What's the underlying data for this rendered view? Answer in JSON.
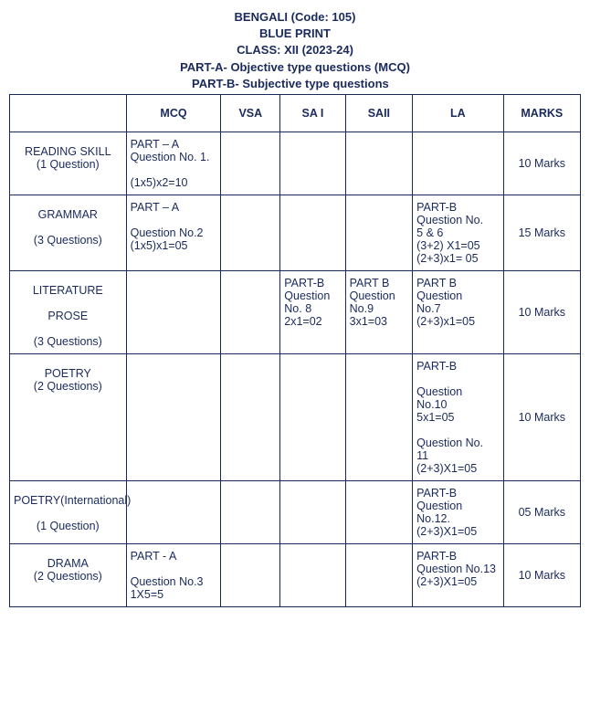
{
  "header": {
    "title": "BENGALI (Code: 105)",
    "blueprint": "BLUE  PRINT",
    "class": "CLASS: XII (2023-24)",
    "parta": "PART-A-  Objective type questions (MCQ)",
    "partb": "PART-B-  Subjective type questions"
  },
  "columns": {
    "blank": "",
    "mcq": "MCQ",
    "vsa": "VSA",
    "sai": "SA I",
    "saii": "SAII",
    "la": "LA",
    "marks": "MARKS"
  },
  "rows": [
    {
      "label": "READING SKILL\n(1 Question)",
      "mcq": "PART – A\nQuestion No. 1.\n\n(1x5)x2=10",
      "vsa": "",
      "sai": "",
      "saii": "",
      "la": "",
      "marks": "10 Marks"
    },
    {
      "label": "GRAMMAR\n\n(3 Questions)",
      "mcq": "PART – A\n\nQuestion No.2\n(1x5)x1=05",
      "vsa": "",
      "sai": "",
      "saii": "",
      "la": "PART-B\nQuestion No.\n  5 & 6\n(3+2) X1=05\n(2+3)x1= 05",
      "marks": "15 Marks"
    },
    {
      "label": "LITERATURE\n\nPROSE\n\n(3 Questions)",
      "mcq": "",
      "vsa": "",
      "sai": "PART-B\nQuestion\nNo. 8\n2x1=02",
      "saii": "PART B\nQuestion\nNo.9\n3x1=03",
      "la": "PART B\nQuestion\nNo.7\n(2+3)x1=05",
      "marks": "10 Marks"
    },
    {
      "label": "POETRY\n(2 Questions)",
      "mcq": "",
      "vsa": "",
      "sai": "",
      "saii": "",
      "la": "  PART-B\n\nQuestion\nNo.10\n5x1=05\n\nQuestion No.\n11\n(2+3)X1=05",
      "marks": "10  Marks"
    },
    {
      "label": "POETRY(International)\n\n(1 Question)",
      "mcq": "",
      "vsa": "",
      "sai": "",
      "saii": "",
      "la": "PART-B\nQuestion\nNo.12.\n(2+3)X1=05",
      "marks": "05 Marks"
    },
    {
      "label": "DRAMA\n(2 Questions)",
      "mcq": " PART - A\n\nQuestion   No.3\n1X5=5",
      "vsa": "",
      "sai": "",
      "saii": "",
      "la": "PART-B\nQuestion No.13\n(2+3)X1=05",
      "marks": "10 Marks"
    }
  ]
}
